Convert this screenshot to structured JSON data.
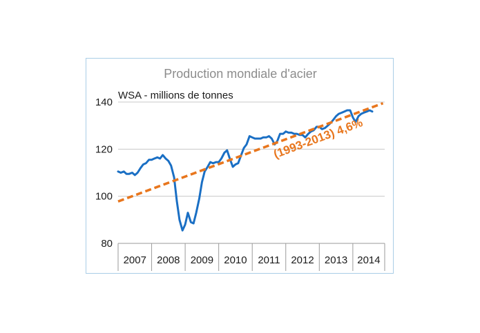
{
  "chart_data": {
    "type": "line",
    "title": "Production mondiale d'acier",
    "ylabel": "WSA - millions de tonnes",
    "xlabel": "",
    "ylim": [
      80,
      140
    ],
    "y_ticks": [
      "80",
      "100",
      "120",
      "140"
    ],
    "x_ticks": [
      "2007",
      "2008",
      "2009",
      "2010",
      "2011",
      "2012",
      "2013",
      "2014"
    ],
    "x_range": [
      2007.0,
      2014.95
    ],
    "grid": "horizontal",
    "colors": {
      "series": "#1a6fc4",
      "trend": "#e8761d",
      "grid": "#c8c8c8"
    },
    "series": [
      {
        "x": [
          2007.0,
          2007.08,
          2007.17,
          2007.25,
          2007.33,
          2007.42,
          2007.5,
          2007.58,
          2007.67,
          2007.75,
          2007.83,
          2007.92,
          2008.0,
          2008.08,
          2008.17,
          2008.25,
          2008.33,
          2008.42,
          2008.5,
          2008.58,
          2008.67,
          2008.75,
          2008.83,
          2008.92,
          2009.0,
          2009.08,
          2009.17,
          2009.25,
          2009.33,
          2009.42,
          2009.5,
          2009.58,
          2009.67,
          2009.75,
          2009.83,
          2009.92,
          2010.0,
          2010.08,
          2010.17,
          2010.25,
          2010.33,
          2010.42,
          2010.5,
          2010.58,
          2010.67,
          2010.75,
          2010.83,
          2010.92,
          2011.0,
          2011.08,
          2011.17,
          2011.25,
          2011.33,
          2011.42,
          2011.5,
          2011.58,
          2011.67,
          2011.75,
          2011.83,
          2011.92,
          2012.0,
          2012.08,
          2012.17,
          2012.25,
          2012.33,
          2012.42,
          2012.5,
          2012.58,
          2012.67,
          2012.75,
          2012.83,
          2012.92,
          2013.0,
          2013.08,
          2013.17,
          2013.25,
          2013.33,
          2013.42,
          2013.5,
          2013.58,
          2013.67,
          2013.75,
          2013.83,
          2013.92,
          2014.0,
          2014.08,
          2014.17,
          2014.25,
          2014.33,
          2014.42,
          2014.5,
          2014.58
        ],
        "values": [
          110.5,
          110.0,
          110.5,
          109.5,
          109.5,
          110.0,
          109.0,
          110.0,
          112.0,
          113.5,
          114.0,
          115.5,
          115.5,
          116.0,
          116.5,
          116.0,
          117.5,
          116.0,
          115.0,
          113.0,
          108.0,
          98.0,
          90.0,
          85.5,
          88.0,
          93.0,
          89.0,
          88.5,
          93.0,
          99.0,
          106.0,
          110.5,
          112.5,
          114.5,
          114.0,
          114.5,
          114.5,
          116.0,
          118.5,
          119.5,
          116.0,
          112.5,
          113.5,
          114.0,
          117.5,
          120.5,
          122.0,
          125.5,
          125.0,
          124.5,
          124.5,
          124.5,
          125.0,
          125.0,
          125.5,
          124.5,
          122.0,
          123.5,
          126.5,
          126.5,
          127.5,
          127.0,
          127.0,
          126.5,
          126.5,
          126.0,
          126.0,
          125.0,
          126.5,
          127.5,
          128.0,
          129.5,
          129.5,
          128.5,
          129.0,
          130.0,
          131.0,
          132.5,
          134.0,
          135.0,
          135.5,
          136.0,
          136.5,
          136.5,
          133.5,
          131.5,
          134.0,
          135.0,
          135.5,
          136.0,
          136.5,
          136.0
        ]
      }
    ],
    "trend": {
      "label": "(1993-2013) 4,6%",
      "x": [
        2007.0,
        2014.9
      ],
      "values": [
        97.8,
        139.5
      ]
    }
  }
}
